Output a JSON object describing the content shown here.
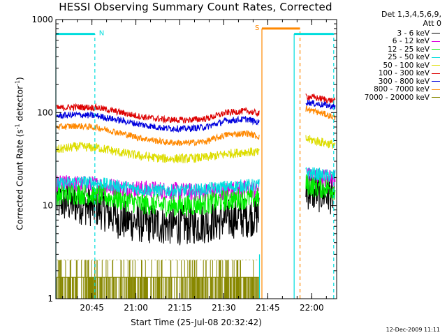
{
  "chart_data": {
    "type": "line",
    "title": "HESSI Observing Summary Count Rates, Corrected",
    "xlabel": "Start Time (25-Jul-08 20:32:42)",
    "ylabel_main": "Corrected Count Rate (s",
    "ylabel_sup1": "-1",
    "ylabel_mid": " detector",
    "ylabel_sup2": "-1",
    "ylabel_end": ")",
    "x_scale": "time",
    "x_range": [
      "20:32:42",
      "22:08:30"
    ],
    "x_ticks": [
      "20:45",
      "21:00",
      "21:15",
      "21:30",
      "21:45",
      "22:00"
    ],
    "y_scale": "log",
    "ylim": [
      1,
      1000
    ],
    "y_ticks": [
      "1",
      "10",
      "100",
      "1000"
    ],
    "detector_label": [
      "Det 1,3,4,5,6,9,",
      "Att 0"
    ],
    "legend_position": "right",
    "gaps": [
      [
        "21:42:10",
        "21:58:00"
      ]
    ],
    "series": [
      {
        "name": "3 - 6 keV",
        "color": "#000000",
        "x": [
          "20:33",
          "20:40",
          "20:47",
          "20:55",
          "21:02",
          "21:10",
          "21:17",
          "21:24",
          "21:31",
          "21:38",
          "21:42",
          "21:58",
          "22:01",
          "22:05",
          "22:08"
        ],
        "values": [
          11,
          10.5,
          9.5,
          7,
          6.5,
          6.2,
          6.2,
          6.5,
          7.2,
          7.5,
          8,
          15,
          14,
          13.5,
          13
        ],
        "noise": 0.22
      },
      {
        "name": "6 - 12 keV",
        "color": "#dd00dd",
        "x": [
          "20:33",
          "20:40",
          "20:47",
          "20:55",
          "21:02",
          "21:10",
          "21:17",
          "21:24",
          "21:31",
          "21:38",
          "21:42",
          "21:58",
          "22:01",
          "22:05",
          "22:08"
        ],
        "values": [
          17,
          17,
          16.5,
          15.5,
          15,
          14.5,
          14,
          14,
          14.5,
          15,
          15,
          21,
          20,
          20,
          19.5
        ],
        "noise": 0.1
      },
      {
        "name": "12 - 25 keV",
        "color": "#00ee00",
        "x": [
          "20:33",
          "20:40",
          "20:47",
          "20:55",
          "21:02",
          "21:10",
          "21:17",
          "21:24",
          "21:31",
          "21:38",
          "21:42",
          "21:58",
          "22:01",
          "22:05",
          "22:08"
        ],
        "values": [
          13,
          13.5,
          13,
          11.5,
          10.5,
          10,
          10,
          10.5,
          11.5,
          12,
          12,
          17,
          16,
          15.5,
          15
        ],
        "noise": 0.12
      },
      {
        "name": "25 - 50 keV",
        "color": "#00dddd",
        "x": [
          "20:33",
          "20:40",
          "20:47",
          "20:55",
          "21:02",
          "21:10",
          "21:17",
          "21:24",
          "21:31",
          "21:38",
          "21:42",
          "21:58",
          "22:01",
          "22:05",
          "22:08"
        ],
        "values": [
          17,
          18,
          17.5,
          16,
          15,
          14.5,
          14.5,
          15,
          16,
          16.5,
          16.5,
          23,
          22,
          21,
          21
        ],
        "noise": 0.07
      },
      {
        "name": "50 - 100 keV",
        "color": "#dddd00",
        "x": [
          "20:33",
          "20:40",
          "20:47",
          "20:55",
          "21:02",
          "21:10",
          "21:17",
          "21:24",
          "21:31",
          "21:38",
          "21:42",
          "21:58",
          "22:01",
          "22:05",
          "22:08"
        ],
        "values": [
          40,
          43,
          42,
          37,
          34,
          32,
          32,
          33,
          36,
          38,
          37,
          52,
          50,
          47,
          45
        ],
        "noise": 0.05
      },
      {
        "name": "100 - 300 keV",
        "color": "#dd0000",
        "x": [
          "20:33",
          "20:40",
          "20:47",
          "20:55",
          "21:02",
          "21:10",
          "21:17",
          "21:24",
          "21:31",
          "21:38",
          "21:42",
          "21:58",
          "22:01",
          "22:05",
          "22:08"
        ],
        "values": [
          112,
          115,
          113,
          100,
          90,
          84,
          83,
          86,
          100,
          104,
          97,
          150,
          145,
          138,
          132
        ],
        "noise": 0.035
      },
      {
        "name": "300 - 800 keV",
        "color": "#0000dd",
        "x": [
          "20:33",
          "20:40",
          "20:47",
          "20:55",
          "21:02",
          "21:10",
          "21:17",
          "21:24",
          "21:31",
          "21:38",
          "21:42",
          "21:58",
          "22:01",
          "22:05",
          "22:08"
        ],
        "values": [
          92,
          95,
          92,
          82,
          74,
          68,
          67,
          70,
          82,
          85,
          78,
          130,
          125,
          120,
          115
        ],
        "noise": 0.035
      },
      {
        "name": "800 - 7000 keV",
        "color": "#ff8800",
        "x": [
          "20:33",
          "20:40",
          "20:47",
          "20:55",
          "21:02",
          "21:10",
          "21:17",
          "21:24",
          "21:31",
          "21:38",
          "21:42",
          "21:58",
          "22:01",
          "22:05",
          "22:08"
        ],
        "values": [
          70,
          72,
          69,
          60,
          53,
          48,
          47,
          49,
          58,
          60,
          55,
          110,
          103,
          95,
          88
        ],
        "noise": 0.035
      },
      {
        "name": "7000 - 20000 keV",
        "color": "#888800",
        "x": [
          "20:33",
          "21:42"
        ],
        "values": [
          1.7,
          1.7
        ],
        "noise": 0,
        "style": "level-switch"
      }
    ],
    "flag_bars": [
      {
        "label": "N",
        "color": "#00dddd",
        "level": 700,
        "start": "20:32:42",
        "end": "20:46:00"
      },
      {
        "label": "",
        "color": "#00dddd",
        "level": 700,
        "start": "21:54:00",
        "end": "22:07:30"
      },
      {
        "label": "S",
        "color": "#ff8800",
        "level": 800,
        "start": "21:43:00",
        "end": "21:56:00"
      }
    ],
    "vlines": [
      {
        "x": "20:32:42",
        "color": "#00dddd",
        "style": "solid",
        "from": 1,
        "to": 700
      },
      {
        "x": "20:46:00",
        "color": "#00dddd",
        "style": "dashed",
        "from": 1,
        "to": 700
      },
      {
        "x": "21:42:10",
        "color": "#00dddd",
        "style": "solid",
        "from": 1,
        "to": 3
      },
      {
        "x": "21:43:00",
        "color": "#ff8800",
        "style": "solid",
        "from": 1,
        "to": 800
      },
      {
        "x": "21:54:00",
        "color": "#00dddd",
        "style": "solid",
        "from": 1,
        "to": 700
      },
      {
        "x": "21:56:00",
        "color": "#ff8800",
        "style": "dashed",
        "from": 1,
        "to": 800
      },
      {
        "x": "22:07:30",
        "color": "#00dddd",
        "style": "dashed",
        "from": 1,
        "to": 700
      }
    ]
  },
  "footer": {
    "timestamp": "12-Dec-2009 11:11"
  }
}
